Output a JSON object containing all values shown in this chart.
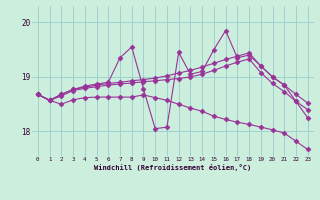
{
  "xlabel": "Windchill (Refroidissement éolien,°C)",
  "background_color": "#cceedd",
  "line_color": "#993399",
  "grid_color": "#99cccc",
  "hours": [
    0,
    1,
    2,
    3,
    4,
    5,
    6,
    7,
    8,
    9,
    10,
    11,
    12,
    13,
    14,
    15,
    16,
    17,
    18,
    19,
    20,
    21,
    22,
    23
  ],
  "line1": [
    18.68,
    18.57,
    18.68,
    18.77,
    18.83,
    18.87,
    18.9,
    19.35,
    19.55,
    18.78,
    18.05,
    18.08,
    19.45,
    19.05,
    19.1,
    19.5,
    19.85,
    19.35,
    19.4,
    19.2,
    19.0,
    18.85,
    18.55,
    18.25
  ],
  "line2": [
    18.68,
    18.57,
    18.68,
    18.77,
    18.81,
    18.85,
    18.88,
    18.9,
    18.93,
    18.95,
    18.98,
    19.02,
    19.07,
    19.12,
    19.18,
    19.25,
    19.32,
    19.38,
    19.44,
    19.2,
    19.0,
    18.85,
    18.68,
    18.52
  ],
  "line3": [
    18.68,
    18.57,
    18.65,
    18.75,
    18.79,
    18.82,
    18.85,
    18.87,
    18.89,
    18.91,
    18.93,
    18.95,
    18.97,
    19.0,
    19.05,
    19.12,
    19.2,
    19.27,
    19.33,
    19.08,
    18.88,
    18.73,
    18.55,
    18.4
  ],
  "line4": [
    18.68,
    18.57,
    18.5,
    18.58,
    18.62,
    18.63,
    18.63,
    18.63,
    18.63,
    18.67,
    18.62,
    18.57,
    18.5,
    18.43,
    18.37,
    18.28,
    18.22,
    18.17,
    18.13,
    18.08,
    18.03,
    17.97,
    17.82,
    17.67
  ],
  "ylim": [
    17.55,
    20.3
  ],
  "yticks": [
    18,
    19,
    20
  ],
  "xticks": [
    0,
    1,
    2,
    3,
    4,
    5,
    6,
    7,
    8,
    9,
    10,
    11,
    12,
    13,
    14,
    15,
    16,
    17,
    18,
    19,
    20,
    21,
    22,
    23
  ]
}
